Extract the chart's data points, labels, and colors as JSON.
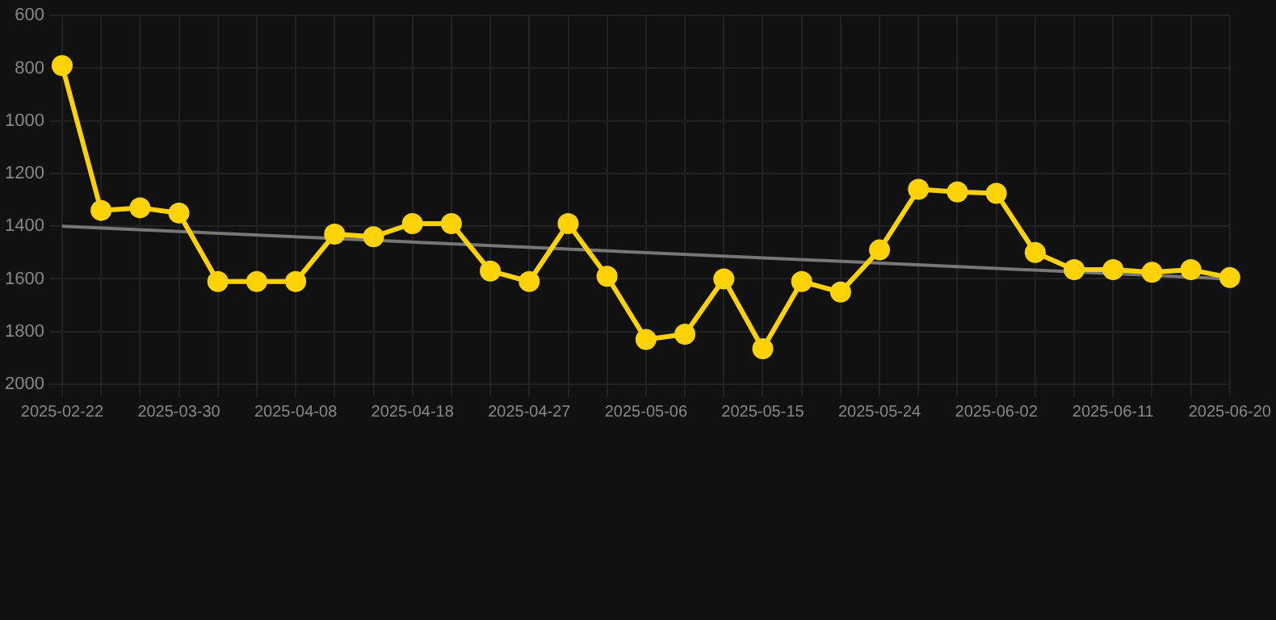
{
  "chart_data": {
    "type": "line",
    "categories": [
      "2025-02-22",
      null,
      null,
      "2025-03-30",
      null,
      null,
      "2025-04-08",
      null,
      null,
      "2025-04-18",
      null,
      null,
      "2025-04-27",
      null,
      null,
      "2025-05-06",
      null,
      null,
      "2025-05-15",
      null,
      null,
      "2025-05-24",
      null,
      null,
      "2025-06-02",
      null,
      null,
      "2025-06-11",
      null,
      null,
      "2025-06-20"
    ],
    "series": [
      {
        "color": "#ffd200",
        "values": [
          790,
          1340,
          1330,
          1350,
          1610,
          1610,
          1610,
          1430,
          1440,
          1390,
          1390,
          1570,
          1610,
          1390,
          1590,
          1830,
          1810,
          1600,
          1865,
          1610,
          1650,
          1490,
          1260,
          1270,
          1275,
          1500,
          1565,
          1565,
          1575,
          1565,
          1595
        ],
        "marker": "circle"
      },
      {
        "type": "line",
        "color": "#777777",
        "values": [
          1400,
          null,
          null,
          null,
          null,
          null,
          null,
          null,
          null,
          null,
          null,
          null,
          null,
          null,
          null,
          null,
          null,
          null,
          null,
          null,
          null,
          null,
          null,
          null,
          null,
          null,
          null,
          null,
          null,
          null,
          1600
        ],
        "marker": "none"
      }
    ],
    "ylim": [
      2000,
      600
    ],
    "yticks": [
      600,
      800,
      1000,
      1200,
      1400,
      1600,
      1800,
      2000
    ],
    "grid": true,
    "legend": false
  }
}
